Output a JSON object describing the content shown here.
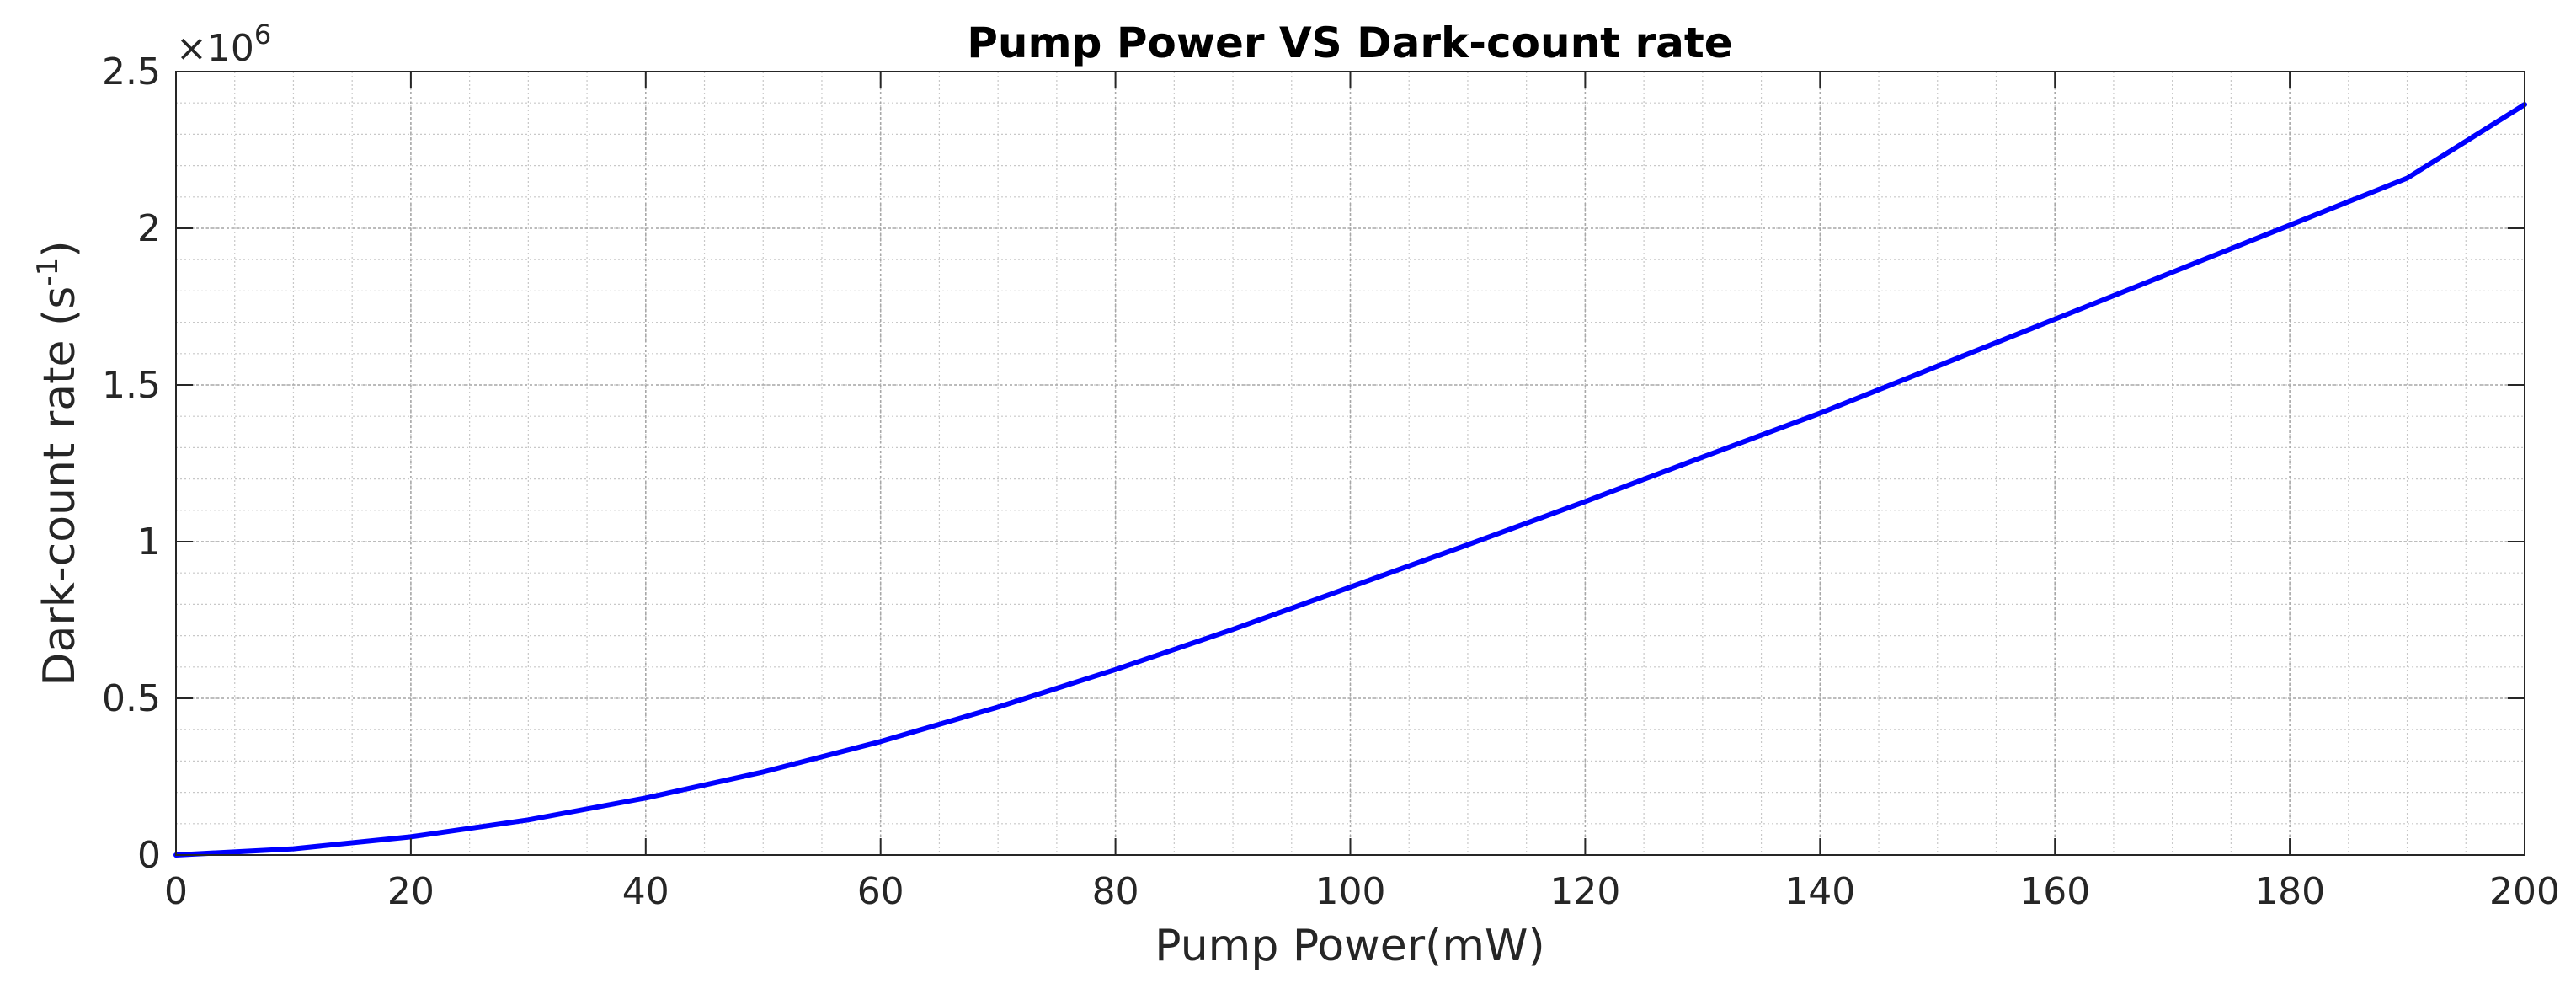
{
  "chart_data": {
    "type": "line",
    "title": "Pump Power VS Dark-count rate",
    "xlabel": "Pump Power(mW)",
    "ylabel_main": "Dark-count rate (s",
    "ylabel_sup": "-1",
    "ylabel_close": ")",
    "y_multiplier_base": "×10",
    "y_multiplier_exp": "6",
    "xlim": [
      0,
      200
    ],
    "ylim": [
      0,
      2.5
    ],
    "xticks": [
      0,
      20,
      40,
      60,
      80,
      100,
      120,
      140,
      160,
      180,
      200
    ],
    "xtick_labels": [
      "0",
      "20",
      "40",
      "60",
      "80",
      "100",
      "120",
      "140",
      "160",
      "180",
      "200"
    ],
    "yticks": [
      0,
      0.5,
      1,
      1.5,
      2,
      2.5
    ],
    "ytick_labels": [
      "0",
      "0.5",
      "1",
      "1.5",
      "2",
      "2.5"
    ],
    "grid": true,
    "minor_grid": true,
    "series": [
      {
        "color": "#0000ff",
        "x": [
          0,
          10,
          20,
          30,
          40,
          50,
          60,
          70,
          80,
          90,
          100,
          110,
          120,
          130,
          140,
          150,
          160,
          170,
          180,
          190,
          200
        ],
        "y": [
          0,
          0.02,
          0.058,
          0.112,
          0.182,
          0.265,
          0.362,
          0.472,
          0.592,
          0.72,
          0.855,
          0.99,
          1.128,
          1.27,
          1.41,
          1.56,
          1.71,
          1.86,
          2.01,
          2.16,
          2.395
        ]
      }
    ]
  }
}
